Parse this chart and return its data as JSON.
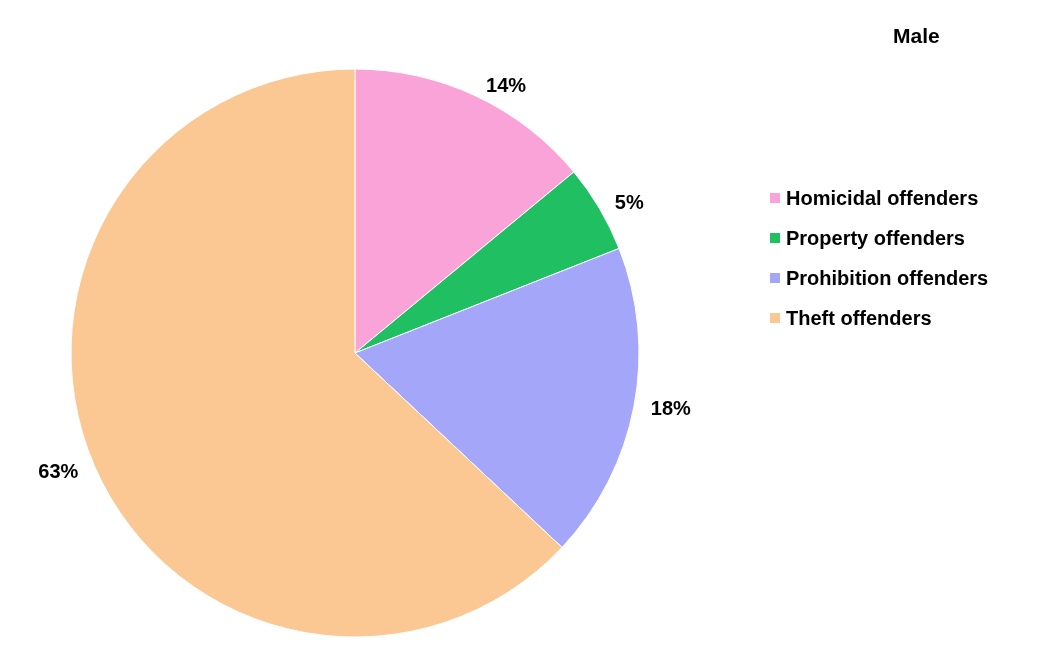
{
  "chart_data": {
    "type": "pie",
    "title": "Male",
    "categories": [
      "Homicidal offenders",
      "Property offenders",
      "Prohibition offenders",
      "Theft offenders"
    ],
    "values": [
      14,
      5,
      18,
      63
    ],
    "colors": [
      "#f9a3d8",
      "#1fbf62",
      "#a4a6f9",
      "#fbc894"
    ],
    "value_labels": [
      "14%",
      "5%",
      "18%",
      "63%"
    ],
    "legend": "right"
  }
}
